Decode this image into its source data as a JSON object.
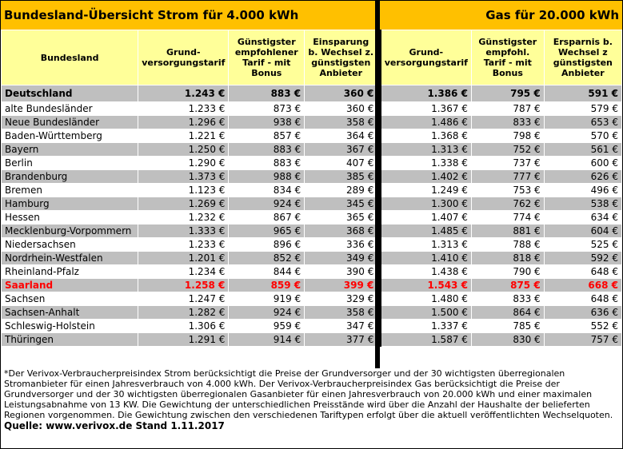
{
  "title_strom": "Bundesland-Übersicht Strom für 4.000 kWh",
  "title_gas": "Gas für 20.000 kWh",
  "headers": {
    "bundesland": "Bundesland",
    "strom_grund": "Grund-versorgungstarif",
    "strom_guenstig": "Günstigster empfohlener Tarif - mit Bonus",
    "strom_ersparnis": "Einsparung b. Wechsel z. günstigsten Anbieter",
    "gas_grund": "Grund-versorgungstarif",
    "gas_guenstig": "Günstigster empfohl. Tarif - mit Bonus",
    "gas_ersparnis": "Ersparnis b. Wechsel z günstigsten Anbieter"
  },
  "deutschland": {
    "name": "Deutschland",
    "s1": "1.243 €",
    "s2": "883 €",
    "s3": "360 €",
    "g1": "1.386 €",
    "g2": "795 €",
    "g3": "591 €"
  },
  "rows": [
    {
      "name": "alte Bundesländer",
      "s1": "1.233 €",
      "s2": "873 €",
      "s3": "360 €",
      "g1": "1.367 €",
      "g2": "787 €",
      "g3": "579 €"
    },
    {
      "name": "Neue Bundesländer",
      "s1": "1.296 €",
      "s2": "938 €",
      "s3": "358 €",
      "g1": "1.486 €",
      "g2": "833 €",
      "g3": "653 €"
    },
    {
      "name": "Baden-Württemberg",
      "s1": "1.221 €",
      "s2": "857 €",
      "s3": "364 €",
      "g1": "1.368 €",
      "g2": "798 €",
      "g3": "570 €"
    },
    {
      "name": "Bayern",
      "s1": "1.250 €",
      "s2": "883 €",
      "s3": "367 €",
      "g1": "1.313 €",
      "g2": "752 €",
      "g3": "561 €"
    },
    {
      "name": "Berlin",
      "s1": "1.290 €",
      "s2": "883 €",
      "s3": "407 €",
      "g1": "1.338 €",
      "g2": "737 €",
      "g3": "600 €"
    },
    {
      "name": "Brandenburg",
      "s1": "1.373 €",
      "s2": "988 €",
      "s3": "385 €",
      "g1": "1.402 €",
      "g2": "777 €",
      "g3": "626 €"
    },
    {
      "name": "Bremen",
      "s1": "1.123 €",
      "s2": "834 €",
      "s3": "289 €",
      "g1": "1.249 €",
      "g2": "753 €",
      "g3": "496 €"
    },
    {
      "name": "Hamburg",
      "s1": "1.269 €",
      "s2": "924 €",
      "s3": "345 €",
      "g1": "1.300 €",
      "g2": "762 €",
      "g3": "538 €"
    },
    {
      "name": "Hessen",
      "s1": "1.232 €",
      "s2": "867 €",
      "s3": "365 €",
      "g1": "1.407 €",
      "g2": "774 €",
      "g3": "634 €"
    },
    {
      "name": "Mecklenburg-Vorpommern",
      "s1": "1.333 €",
      "s2": "965 €",
      "s3": "368 €",
      "g1": "1.485 €",
      "g2": "881 €",
      "g3": "604 €"
    },
    {
      "name": "Niedersachsen",
      "s1": "1.233 €",
      "s2": "896 €",
      "s3": "336 €",
      "g1": "1.313 €",
      "g2": "788 €",
      "g3": "525 €"
    },
    {
      "name": "Nordrhein-Westfalen",
      "s1": "1.201 €",
      "s2": "852 €",
      "s3": "349 €",
      "g1": "1.410 €",
      "g2": "818 €",
      "g3": "592 €"
    },
    {
      "name": "Rheinland-Pfalz",
      "s1": "1.234 €",
      "s2": "844 €",
      "s3": "390 €",
      "g1": "1.438 €",
      "g2": "790 €",
      "g3": "648 €"
    },
    {
      "name": "Saarland",
      "s1": "1.258 €",
      "s2": "859 €",
      "s3": "399 €",
      "g1": "1.543 €",
      "g2": "875 €",
      "g3": "668 €",
      "highlight": true
    },
    {
      "name": "Sachsen",
      "s1": "1.247 €",
      "s2": "919 €",
      "s3": "329 €",
      "g1": "1.480 €",
      "g2": "833 €",
      "g3": "648 €"
    },
    {
      "name": "Sachsen-Anhalt",
      "s1": "1.282 €",
      "s2": "924 €",
      "s3": "358 €",
      "g1": "1.500 €",
      "g2": "864 €",
      "g3": "636 €"
    },
    {
      "name": "Schleswig-Holstein",
      "s1": "1.306 €",
      "s2": "959 €",
      "s3": "347 €",
      "g1": "1.337 €",
      "g2": "785 €",
      "g3": "552 €"
    },
    {
      "name": "Thüringen",
      "s1": "1.291 €",
      "s2": "914 €",
      "s3": "377 €",
      "g1": "1.587 €",
      "g2": "830 €",
      "g3": "757 €"
    }
  ],
  "footnote": " *Der Verivox-Verbraucherpreisindex Strom berücksichtigt die Preise der Grundversorger und der 30 wichtigsten überregionalen Stromanbieter für einen Jahresverbrauch von 4.000 kWh. Der Verivox-Verbraucherpreisindex Gas berücksichtigt die Preise der Grundversorger und der 30 wichtigsten überregionalen Gasanbieter für einen Jahresverbrauch von 20.000 kWh und einer maximalen Leistungsabnahme von 13 KW. Die Gewichtung der unterschiedlichen Preisstände wird über die Anzahl der Haushalte der belieferten Regionen vorgenommen. Die Gewichtung zwischen den verschiedenen Tariftypen erfolgt über die aktuell veröffentlichten Wechselquoten.",
  "source": "Quelle: www.verivox.de  Stand 1.11.2017",
  "colors": {
    "title_bg": "#ffc000",
    "header_bg": "#ffff99",
    "row_alt": "#bfbfbf",
    "highlight": "#ff0000"
  }
}
